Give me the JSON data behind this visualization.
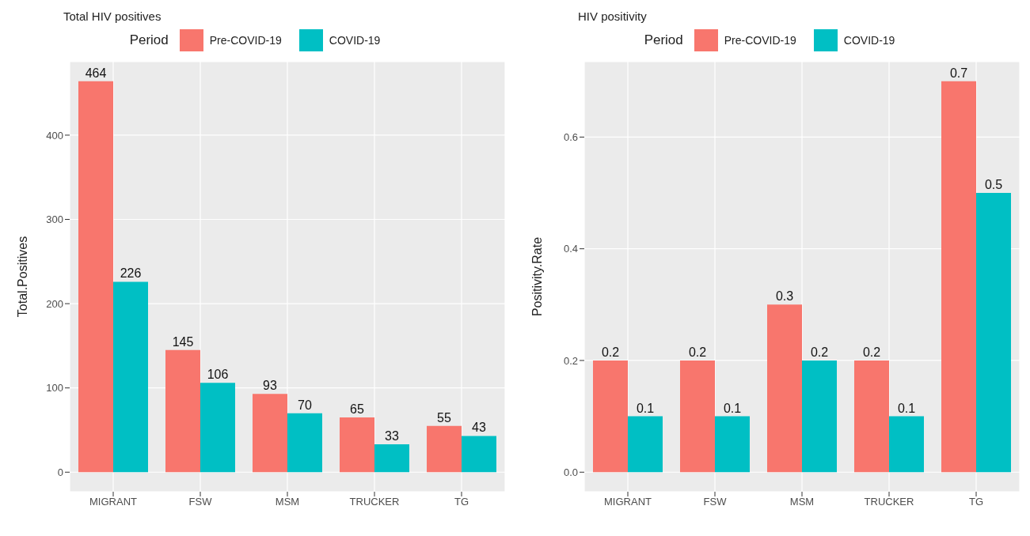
{
  "chart_data": [
    {
      "type": "bar",
      "title": "Total HIV positives",
      "ylabel": "Total.Positives",
      "legend_title": "Period",
      "legend": "top",
      "grid": true,
      "data_labels": true,
      "categories": [
        "MIGRANT",
        "FSW",
        "MSM",
        "TRUCKER",
        "TG"
      ],
      "series": [
        {
          "name": "Pre-COVID-19",
          "color": "#f8766d",
          "values": [
            464,
            145,
            93,
            65,
            55
          ]
        },
        {
          "name": "COVID-19",
          "color": "#00bfc4",
          "values": [
            226,
            106,
            70,
            33,
            43
          ]
        }
      ],
      "ylim": [
        -23.2,
        487.2
      ],
      "yticks": [
        0,
        100,
        200,
        300,
        400
      ]
    },
    {
      "type": "bar",
      "title": "HIV positivity",
      "ylabel": "Positivity.Rate",
      "legend_title": "Period",
      "legend": "top",
      "grid": true,
      "data_labels": true,
      "categories": [
        "MIGRANT",
        "FSW",
        "MSM",
        "TRUCKER",
        "TG"
      ],
      "series": [
        {
          "name": "Pre-COVID-19",
          "color": "#f8766d",
          "values": [
            0.2,
            0.2,
            0.3,
            0.2,
            0.7
          ]
        },
        {
          "name": "COVID-19",
          "color": "#00bfc4",
          "values": [
            0.1,
            0.1,
            0.2,
            0.1,
            0.5
          ]
        }
      ],
      "ylim": [
        -0.035,
        0.735
      ],
      "yticks": [
        {
          "value": 0,
          "label": "0.0"
        },
        {
          "value": 0.2,
          "label": "0.2"
        },
        {
          "value": 0.4,
          "label": "0.4"
        },
        {
          "value": 0.6,
          "label": "0.6"
        }
      ]
    }
  ]
}
